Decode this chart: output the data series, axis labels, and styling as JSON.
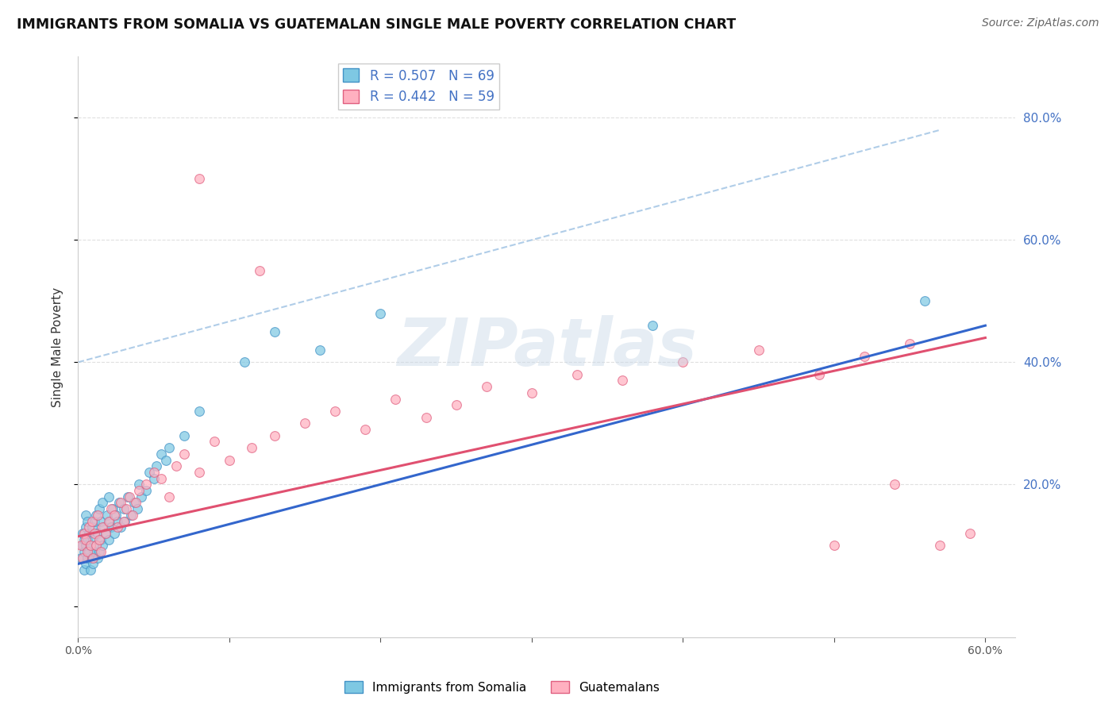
{
  "title": "IMMIGRANTS FROM SOMALIA VS GUATEMALAN SINGLE MALE POVERTY CORRELATION CHART",
  "source": "Source: ZipAtlas.com",
  "ylabel": "Single Male Poverty",
  "xlim": [
    0.0,
    0.62
  ],
  "ylim": [
    -0.05,
    0.9
  ],
  "somalia_color": "#7EC8E3",
  "somalia_edge": "#4292C6",
  "guatemalan_color": "#FFB0C0",
  "guatemalan_edge": "#E06080",
  "somalia_line_color": "#3366CC",
  "guatemalan_line_color": "#E05070",
  "dashed_line_color": "#B0CDE8",
  "background_color": "#FFFFFF",
  "grid_color": "#E0E0E0",
  "watermark": "ZIPatlas",
  "watermark_color": "#C8D8E8",
  "somalia_R": 0.507,
  "somalia_N": 69,
  "guatemalan_R": 0.442,
  "guatemalan_N": 59,
  "somalia_line": [
    0.0,
    0.07,
    0.6,
    0.46
  ],
  "guatemalan_line": [
    0.0,
    0.115,
    0.6,
    0.44
  ],
  "dashed_line": [
    0.0,
    0.4,
    0.57,
    0.78
  ],
  "right_ytick_labels": [
    "20.0%",
    "40.0%",
    "60.0%",
    "80.0%"
  ],
  "right_ytick_vals": [
    0.2,
    0.4,
    0.6,
    0.8
  ],
  "bottom_xtick_vals": [
    0.0,
    0.1,
    0.2,
    0.3,
    0.4,
    0.5,
    0.6
  ],
  "somalia_points_x": [
    0.002,
    0.003,
    0.003,
    0.004,
    0.004,
    0.004,
    0.005,
    0.005,
    0.005,
    0.005,
    0.006,
    0.006,
    0.006,
    0.007,
    0.007,
    0.008,
    0.008,
    0.009,
    0.009,
    0.01,
    0.01,
    0.011,
    0.011,
    0.012,
    0.012,
    0.013,
    0.013,
    0.014,
    0.014,
    0.015,
    0.015,
    0.016,
    0.016,
    0.017,
    0.018,
    0.019,
    0.02,
    0.02,
    0.021,
    0.022,
    0.023,
    0.024,
    0.025,
    0.026,
    0.027,
    0.028,
    0.03,
    0.031,
    0.033,
    0.035,
    0.037,
    0.039,
    0.04,
    0.042,
    0.045,
    0.047,
    0.05,
    0.052,
    0.055,
    0.058,
    0.06,
    0.07,
    0.08,
    0.11,
    0.13,
    0.16,
    0.2,
    0.38,
    0.56
  ],
  "somalia_points_y": [
    0.08,
    0.1,
    0.12,
    0.06,
    0.09,
    0.11,
    0.07,
    0.1,
    0.13,
    0.15,
    0.08,
    0.11,
    0.14,
    0.09,
    0.12,
    0.06,
    0.1,
    0.08,
    0.13,
    0.07,
    0.11,
    0.09,
    0.14,
    0.1,
    0.15,
    0.08,
    0.12,
    0.09,
    0.16,
    0.11,
    0.14,
    0.1,
    0.17,
    0.13,
    0.12,
    0.15,
    0.11,
    0.18,
    0.14,
    0.13,
    0.16,
    0.12,
    0.15,
    0.14,
    0.17,
    0.13,
    0.16,
    0.14,
    0.18,
    0.15,
    0.17,
    0.16,
    0.2,
    0.18,
    0.19,
    0.22,
    0.21,
    0.23,
    0.25,
    0.24,
    0.26,
    0.28,
    0.32,
    0.4,
    0.45,
    0.42,
    0.48,
    0.46,
    0.5
  ],
  "guatemalan_points_x": [
    0.002,
    0.003,
    0.004,
    0.005,
    0.006,
    0.007,
    0.008,
    0.009,
    0.01,
    0.011,
    0.012,
    0.013,
    0.014,
    0.015,
    0.016,
    0.018,
    0.02,
    0.022,
    0.024,
    0.026,
    0.028,
    0.03,
    0.032,
    0.034,
    0.036,
    0.038,
    0.04,
    0.045,
    0.05,
    0.055,
    0.06,
    0.065,
    0.07,
    0.08,
    0.09,
    0.1,
    0.115,
    0.13,
    0.15,
    0.17,
    0.19,
    0.21,
    0.23,
    0.25,
    0.27,
    0.3,
    0.33,
    0.36,
    0.4,
    0.45,
    0.49,
    0.52,
    0.55,
    0.57,
    0.59,
    0.54,
    0.5,
    0.12,
    0.08
  ],
  "guatemalan_points_y": [
    0.1,
    0.08,
    0.12,
    0.11,
    0.09,
    0.13,
    0.1,
    0.14,
    0.08,
    0.12,
    0.1,
    0.15,
    0.11,
    0.09,
    0.13,
    0.12,
    0.14,
    0.16,
    0.15,
    0.13,
    0.17,
    0.14,
    0.16,
    0.18,
    0.15,
    0.17,
    0.19,
    0.2,
    0.22,
    0.21,
    0.18,
    0.23,
    0.25,
    0.22,
    0.27,
    0.24,
    0.26,
    0.28,
    0.3,
    0.32,
    0.29,
    0.34,
    0.31,
    0.33,
    0.36,
    0.35,
    0.38,
    0.37,
    0.4,
    0.42,
    0.38,
    0.41,
    0.43,
    0.1,
    0.12,
    0.2,
    0.1,
    0.55,
    0.7
  ]
}
